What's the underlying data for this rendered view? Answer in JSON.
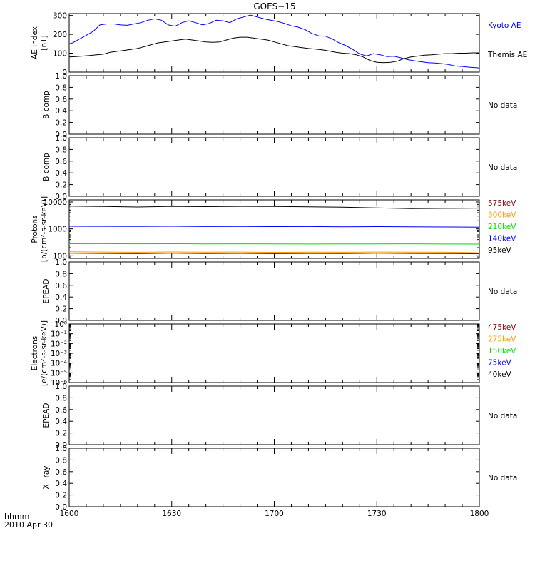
{
  "figure": {
    "title": "GOES−15",
    "footer_left_top": "hhmm",
    "footer_left_bottom": "2010 Apr 30"
  },
  "chart_data": [
    {
      "id": "ae",
      "type": "line",
      "ylabel_lines": [
        "AE index",
        "[nT]"
      ],
      "yscale": "linear",
      "ylim": [
        0,
        310
      ],
      "yticks": [
        0,
        100,
        200,
        300
      ],
      "yticklabels": [
        "0",
        "100",
        "200",
        "300"
      ],
      "xlim": [
        0,
        120
      ],
      "series": [
        {
          "name": "Kyoto AE",
          "color": "#0000ff",
          "x": [
            0,
            1,
            3,
            5,
            7,
            9,
            11,
            13,
            15,
            17,
            19,
            21,
            23,
            25,
            27,
            29,
            31,
            33,
            35,
            37,
            39,
            41,
            43,
            45,
            47,
            49,
            51,
            53,
            55,
            57,
            59,
            61,
            63,
            65,
            67,
            69,
            71,
            73,
            75,
            77,
            79,
            81,
            83,
            85,
            87,
            89,
            91,
            93,
            95,
            97,
            99,
            101,
            103,
            105,
            107,
            109,
            111,
            113,
            115,
            117,
            119,
            120
          ],
          "y": [
            150,
            155,
            175,
            195,
            215,
            250,
            255,
            255,
            250,
            248,
            255,
            262,
            275,
            282,
            275,
            250,
            243,
            262,
            272,
            262,
            250,
            258,
            275,
            272,
            262,
            282,
            292,
            302,
            292,
            282,
            275,
            268,
            258,
            245,
            238,
            225,
            205,
            192,
            190,
            175,
            155,
            140,
            120,
            96,
            86,
            98,
            92,
            82,
            84,
            76,
            66,
            60,
            55,
            50,
            48,
            45,
            40,
            32,
            30,
            26,
            24,
            22
          ]
        },
        {
          "name": "Themis AE",
          "color": "#000000",
          "x": [
            0,
            2,
            4,
            6,
            8,
            10,
            12,
            14,
            16,
            18,
            20,
            22,
            24,
            26,
            28,
            30,
            32,
            34,
            36,
            38,
            40,
            42,
            44,
            46,
            48,
            50,
            52,
            54,
            56,
            58,
            60,
            62,
            64,
            66,
            68,
            70,
            72,
            74,
            76,
            78,
            80,
            82,
            84,
            86,
            88,
            90,
            92,
            94,
            96,
            98,
            100,
            102,
            104,
            106,
            108,
            110,
            112,
            114,
            116,
            118,
            120
          ],
          "y": [
            80,
            82,
            85,
            88,
            92,
            95,
            105,
            110,
            115,
            120,
            125,
            135,
            145,
            155,
            160,
            165,
            170,
            175,
            170,
            165,
            160,
            158,
            160,
            170,
            180,
            185,
            185,
            180,
            175,
            170,
            160,
            150,
            140,
            135,
            130,
            125,
            122,
            118,
            112,
            105,
            100,
            98,
            92,
            80,
            62,
            52,
            50,
            52,
            58,
            72,
            80,
            85,
            90,
            92,
            95,
            98,
            98,
            100,
            100,
            102,
            102
          ]
        }
      ]
    },
    {
      "id": "b1",
      "type": "line",
      "ylabel_lines": [
        "B comp"
      ],
      "yscale": "linear",
      "ylim": [
        0,
        1.0
      ],
      "yticks": [
        0,
        0.2,
        0.4,
        0.6,
        0.8,
        1.0
      ],
      "yticklabels": [
        "0.0",
        "0.2",
        "0.4",
        "0.6",
        "0.8",
        "1.0"
      ],
      "xlim": [
        0,
        120
      ],
      "series": [],
      "note": "No data"
    },
    {
      "id": "b2",
      "type": "line",
      "ylabel_lines": [
        "B comp"
      ],
      "yscale": "linear",
      "ylim": [
        0,
        1.0
      ],
      "yticks": [
        0,
        0.2,
        0.4,
        0.6,
        0.8,
        1.0
      ],
      "yticklabels": [
        "0.0",
        "0.2",
        "0.4",
        "0.6",
        "0.8",
        "1.0"
      ],
      "xlim": [
        0,
        120
      ],
      "series": [],
      "note": "No data"
    },
    {
      "id": "protons",
      "type": "line",
      "ylabel_lines": [
        "Protons",
        "[p/(cm²-s-sr-keV)]"
      ],
      "yscale": "log",
      "ylim": [
        80,
        12000
      ],
      "yticks": [
        100,
        1000,
        10000
      ],
      "yticklabels": [
        "100",
        "1000",
        "10000"
      ],
      "xlim": [
        0,
        120
      ],
      "series": [
        {
          "name": "575keV",
          "color": "#800000",
          "x": [
            0,
            10,
            20,
            30,
            40,
            50,
            60,
            70,
            80,
            90,
            100,
            110,
            120
          ],
          "y": [
            125,
            122,
            120,
            124,
            121,
            123,
            120,
            122,
            121,
            124,
            122,
            121,
            118
          ]
        },
        {
          "name": "300keV",
          "color": "#ff9900",
          "x": [
            0,
            10,
            20,
            30,
            40,
            50,
            60,
            70,
            80,
            90,
            100,
            110,
            120
          ],
          "y": [
            140,
            138,
            135,
            139,
            136,
            138,
            134,
            137,
            135,
            138,
            137,
            135,
            130
          ]
        },
        {
          "name": "210keV",
          "color": "#00dd00",
          "x": [
            0,
            10,
            20,
            30,
            40,
            50,
            60,
            70,
            80,
            90,
            100,
            110,
            120
          ],
          "y": [
            280,
            282,
            278,
            280,
            276,
            278,
            275,
            274,
            276,
            275,
            278,
            274,
            272
          ]
        },
        {
          "name": "140keV",
          "color": "#0000ff",
          "x": [
            0,
            10,
            20,
            30,
            40,
            50,
            60,
            70,
            80,
            90,
            100,
            110,
            120
          ],
          "y": [
            1250,
            1240,
            1230,
            1250,
            1220,
            1230,
            1210,
            1220,
            1200,
            1210,
            1190,
            1180,
            1160
          ]
        },
        {
          "name": "95keV",
          "color": "#000000",
          "x": [
            0,
            10,
            20,
            30,
            40,
            50,
            60,
            70,
            80,
            90,
            100,
            110,
            120
          ],
          "y": [
            7000,
            6800,
            6500,
            6900,
            6700,
            6900,
            6800,
            6600,
            6400,
            6000,
            5700,
            5800,
            5900
          ]
        }
      ]
    },
    {
      "id": "epead1",
      "type": "line",
      "ylabel_lines": [
        "EPEAD"
      ],
      "yscale": "linear",
      "ylim": [
        0,
        1.0
      ],
      "yticks": [
        0,
        0.2,
        0.4,
        0.6,
        0.8,
        1.0
      ],
      "yticklabels": [
        "0.0",
        "0.2",
        "0.4",
        "0.6",
        "0.8",
        "1.0"
      ],
      "xlim": [
        0,
        120
      ],
      "series": [],
      "note": "No data"
    },
    {
      "id": "electrons",
      "type": "line",
      "ylabel_lines": [
        "Electrons",
        "[e/(cm²-s-sr-keV)]"
      ],
      "yscale": "log",
      "ylim": [
        1e-06,
        1
      ],
      "yticks": [
        1,
        0.1,
        0.01,
        0.001,
        0.0001,
        1e-05,
        1e-06
      ],
      "yticklabels": [
        "10⁰",
        "10⁻¹",
        "10⁻²",
        "10⁻³",
        "10⁻⁴",
        "10⁻⁵",
        "10⁻⁶"
      ],
      "xlim": [
        0,
        120
      ],
      "series": [
        {
          "name": "475keV",
          "color": "#800000",
          "x": [],
          "y": []
        },
        {
          "name": "275keV",
          "color": "#ff9900",
          "x": [],
          "y": []
        },
        {
          "name": "150keV",
          "color": "#00dd00",
          "x": [],
          "y": []
        },
        {
          "name": "75keV",
          "color": "#0000ff",
          "x": [],
          "y": []
        },
        {
          "name": "40keV",
          "color": "#000000",
          "x": [],
          "y": []
        }
      ]
    },
    {
      "id": "epead2",
      "type": "line",
      "ylabel_lines": [
        "EPEAD"
      ],
      "yscale": "linear",
      "ylim": [
        0,
        1.0
      ],
      "yticks": [
        0,
        0.2,
        0.4,
        0.6,
        0.8,
        1.0
      ],
      "yticklabels": [
        "0.0",
        "0.2",
        "0.4",
        "0.6",
        "0.8",
        "1.0"
      ],
      "xlim": [
        0,
        120
      ],
      "series": [],
      "note": "No data"
    },
    {
      "id": "xray",
      "type": "line",
      "ylabel_lines": [
        "X−ray"
      ],
      "yscale": "linear",
      "ylim": [
        0,
        1.0
      ],
      "yticks": [
        0,
        0.2,
        0.4,
        0.6,
        0.8,
        1.0
      ],
      "yticklabels": [
        "0.0",
        "0.2",
        "0.4",
        "0.6",
        "0.8",
        "1.0"
      ],
      "xlim": [
        0,
        120
      ],
      "series": [],
      "note": "No data",
      "x_major_ticks": [
        0,
        30,
        60,
        90,
        120
      ],
      "x_major_labels": [
        "1600",
        "1630",
        "1700",
        "1730",
        "1800"
      ]
    }
  ]
}
